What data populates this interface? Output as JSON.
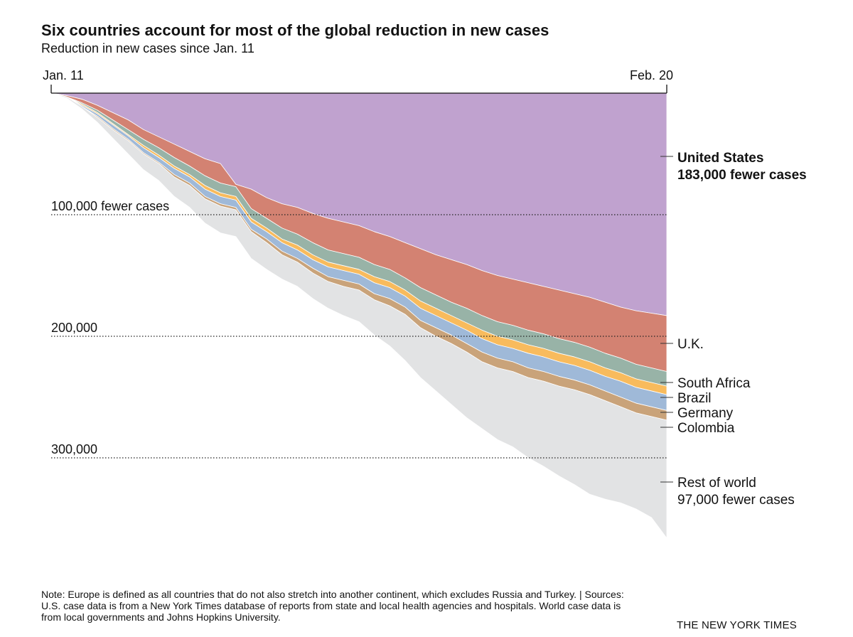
{
  "title": "Six countries account for most of the global reduction in new cases",
  "subtitle": "Reduction in new cases since Jan. 11",
  "note": "Note: Europe is defined as all countries that do not also stretch into another continent, which excludes Russia and Turkey. | Sources: U.S. case data is from a New York Times database of reports from state and local health agencies and hospitals. World case data is from local governments and Johns Hopkins University.",
  "credit": "THE NEW YORK TIMES",
  "chart_data": {
    "type": "area",
    "stacked": true,
    "title": "Six countries account for most of the global reduction in new cases",
    "subtitle": "Reduction in new cases since Jan. 11",
    "x_start_label": "Jan. 11",
    "x_end_label": "Feb. 20",
    "x": [
      "Jan. 11",
      "Jan. 12",
      "Jan. 13",
      "Jan. 14",
      "Jan. 15",
      "Jan. 16",
      "Jan. 17",
      "Jan. 18",
      "Jan. 19",
      "Jan. 20",
      "Jan. 21",
      "Jan. 22",
      "Jan. 23",
      "Jan. 24",
      "Jan. 25",
      "Jan. 26",
      "Jan. 27",
      "Jan. 28",
      "Jan. 29",
      "Jan. 30",
      "Jan. 31",
      "Feb. 1",
      "Feb. 2",
      "Feb. 3",
      "Feb. 4",
      "Feb. 5",
      "Feb. 6",
      "Feb. 7",
      "Feb. 8",
      "Feb. 9",
      "Feb. 10",
      "Feb. 11",
      "Feb. 12",
      "Feb. 13",
      "Feb. 14",
      "Feb. 15",
      "Feb. 16",
      "Feb. 17",
      "Feb. 18",
      "Feb. 19",
      "Feb. 20"
    ],
    "y_direction": "down",
    "y_gridlines": [
      {
        "value": 100000,
        "label": "100,000 fewer cases"
      },
      {
        "value": 200000,
        "label": "200,000"
      },
      {
        "value": 300000,
        "label": "300,000"
      }
    ],
    "ylim": [
      0,
      380000
    ],
    "series": [
      {
        "name": "United States",
        "color": "#c0a2cf",
        "label": [
          "United States",
          "183,000 fewer cases"
        ],
        "label_bold": true,
        "values": [
          0,
          2000,
          5000,
          10000,
          16000,
          22000,
          30000,
          36000,
          42000,
          48000,
          54000,
          58000,
          75000,
          79000,
          86000,
          91000,
          94000,
          99000,
          103000,
          106000,
          109000,
          114000,
          118000,
          123000,
          128000,
          133000,
          137000,
          141000,
          146000,
          150000,
          153000,
          156000,
          159000,
          162000,
          165000,
          168000,
          172000,
          176000,
          179000,
          181000,
          183000
        ]
      },
      {
        "name": "U.K.",
        "color": "#d38272",
        "label": [
          "U.K."
        ],
        "values": [
          0,
          1000,
          3000,
          4000,
          6000,
          8000,
          8000,
          9000,
          11000,
          12000,
          14000,
          16000,
          2000,
          16000,
          17000,
          20000,
          22000,
          24000,
          26000,
          26000,
          26000,
          27000,
          27000,
          29000,
          32000,
          33000,
          35000,
          36000,
          37000,
          38000,
          38000,
          39000,
          39000,
          40000,
          40000,
          41000,
          42000,
          42000,
          44000,
          45000,
          46000
        ]
      },
      {
        "name": "South Africa",
        "color": "#98b3a7",
        "label": [
          "South Africa"
        ],
        "values": [
          0,
          0,
          1000,
          2000,
          3000,
          4000,
          5000,
          6000,
          7000,
          7000,
          8000,
          8000,
          8000,
          8000,
          8000,
          9000,
          9000,
          10000,
          10000,
          10000,
          10000,
          10000,
          10000,
          10000,
          11000,
          11000,
          11000,
          12000,
          12000,
          12000,
          12000,
          12000,
          12000,
          12000,
          12000,
          12000,
          12000,
          12000,
          12000,
          12000,
          12000
        ]
      },
      {
        "name": "Brazil",
        "color": "#f8bb5d",
        "label": [
          "Brazil"
        ],
        "values": [
          0,
          0,
          1000,
          1000,
          1000,
          1000,
          2000,
          2000,
          2000,
          2000,
          3000,
          3000,
          3000,
          3000,
          3000,
          3000,
          4000,
          4000,
          4000,
          4000,
          4000,
          5000,
          5000,
          5000,
          6000,
          6000,
          6000,
          6000,
          7000,
          7000,
          7000,
          7000,
          7000,
          7000,
          7000,
          7000,
          7000,
          7000,
          7000,
          7000,
          7000
        ]
      },
      {
        "name": "Germany",
        "color": "#9fb9d8",
        "label": [
          "Germany"
        ],
        "values": [
          0,
          0,
          1000,
          2000,
          3000,
          3000,
          4000,
          4000,
          5000,
          5000,
          6000,
          6000,
          6000,
          6000,
          6000,
          7000,
          7000,
          7000,
          8000,
          8000,
          8000,
          9000,
          9000,
          9000,
          10000,
          10000,
          10000,
          11000,
          11000,
          11000,
          11000,
          12000,
          12000,
          12000,
          12000,
          12000,
          12000,
          13000,
          13000,
          13000,
          13000
        ]
      },
      {
        "name": "Colombia",
        "color": "#c9a37a",
        "label": [
          "Colombia"
        ],
        "values": [
          0,
          0,
          0,
          1000,
          1000,
          1000,
          1000,
          1000,
          2000,
          2000,
          2000,
          2000,
          2000,
          2000,
          3000,
          3000,
          3000,
          4000,
          4000,
          5000,
          5000,
          5000,
          6000,
          6000,
          6000,
          7000,
          7000,
          7000,
          8000,
          8000,
          8000,
          8000,
          8000,
          8000,
          8000,
          8000,
          8000,
          8000,
          8000,
          8000,
          8000
        ]
      },
      {
        "name": "Rest of world",
        "color": "#e2e3e4",
        "label": [
          "Rest of world",
          "97,000 fewer cases"
        ],
        "label_bold": false,
        "values": [
          0,
          1000,
          2000,
          4000,
          7000,
          11000,
          13000,
          14000,
          16000,
          18000,
          20000,
          22000,
          22000,
          22000,
          22000,
          20000,
          20000,
          21000,
          22000,
          24000,
          26000,
          29000,
          33000,
          38000,
          41000,
          45000,
          50000,
          54000,
          55000,
          59000,
          62000,
          66000,
          70000,
          74000,
          78000,
          82000,
          81000,
          79000,
          79000,
          83000,
          97000
        ]
      }
    ]
  }
}
